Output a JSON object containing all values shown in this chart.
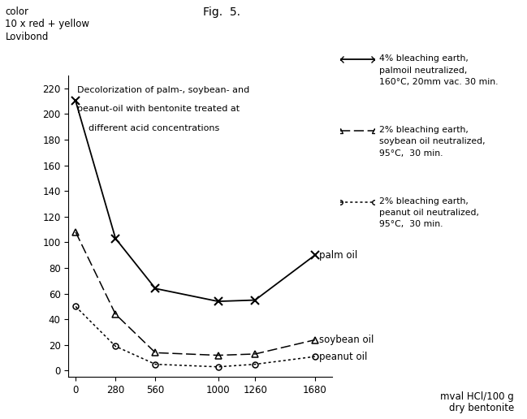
{
  "x_values": [
    0,
    280,
    560,
    1000,
    1260,
    1680
  ],
  "palm_oil_y": [
    210,
    103,
    64,
    54,
    55,
    90
  ],
  "soybean_y": [
    108,
    44,
    14,
    12,
    13,
    24
  ],
  "peanut_y": [
    50,
    19,
    5,
    3,
    5,
    11
  ],
  "x_ticks": [
    0,
    280,
    560,
    1000,
    1260,
    1680
  ],
  "y_ticks": [
    0,
    20,
    40,
    60,
    80,
    100,
    120,
    140,
    160,
    180,
    200,
    220
  ],
  "ylim": [
    -5,
    230
  ],
  "xlim": [
    -50,
    1800
  ],
  "fig_title": "Fig.  5.",
  "subtitle_lines": [
    "Decolorization of palm-, soybean- and",
    "peanut-oil with bentonite treated at",
    "    different acid concentrations"
  ],
  "ylabel_line1": "color",
  "ylabel_line2": "10 x red + yellow",
  "ylabel_line3": "Lovibond",
  "xlabel_line1": "mval HCl/100 g",
  "xlabel_line2": "dry bentonite",
  "legend_line1": [
    "4% bleaching earth,",
    "palmoil neutralized,",
    "160°C, 20mm vac. 30 min."
  ],
  "legend_line2": [
    "2% bleaching earth,",
    "soybean oil neutralized,",
    "95°C,  30 min."
  ],
  "legend_line3": [
    "2% bleaching earth,",
    "peanut oil neutralized,",
    "95°C,  30 min."
  ],
  "series_labels": [
    "palm oil",
    "soybean oil",
    "peanut oil"
  ],
  "bg_color": "#ffffff",
  "line_color": "#000000"
}
